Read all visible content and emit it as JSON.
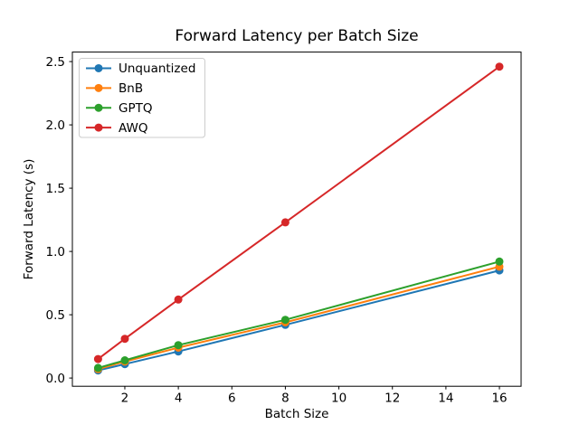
{
  "chart_data": {
    "type": "line",
    "title": "Forward Latency per Batch Size",
    "xlabel": "Batch Size",
    "ylabel": "Forward Latency (s)",
    "x": [
      1,
      2,
      4,
      8,
      16
    ],
    "series": [
      {
        "name": "Unquantized",
        "color": "#1f77b4",
        "values": [
          0.06,
          0.11,
          0.21,
          0.42,
          0.85
        ]
      },
      {
        "name": "BnB",
        "color": "#ff7f0e",
        "values": [
          0.07,
          0.13,
          0.24,
          0.44,
          0.88
        ]
      },
      {
        "name": "GPTQ",
        "color": "#2ca02c",
        "values": [
          0.08,
          0.14,
          0.26,
          0.46,
          0.92
        ]
      },
      {
        "name": "AWQ",
        "color": "#d62728",
        "values": [
          0.15,
          0.31,
          0.62,
          1.23,
          2.46
        ]
      }
    ],
    "xticks": [
      2,
      4,
      6,
      8,
      10,
      12,
      14,
      16
    ],
    "yticks": [
      0.0,
      0.5,
      1.0,
      1.5,
      2.0,
      2.5
    ],
    "xlim": [
      0.04,
      16.81
    ],
    "ylim": [
      -0.065,
      2.575
    ],
    "grid": false,
    "legend_position": "upper left",
    "marker": "o",
    "line_width": 2,
    "marker_radius": 4.5,
    "spine_color": "#000000",
    "legend_edge_color": "#cccccc"
  }
}
